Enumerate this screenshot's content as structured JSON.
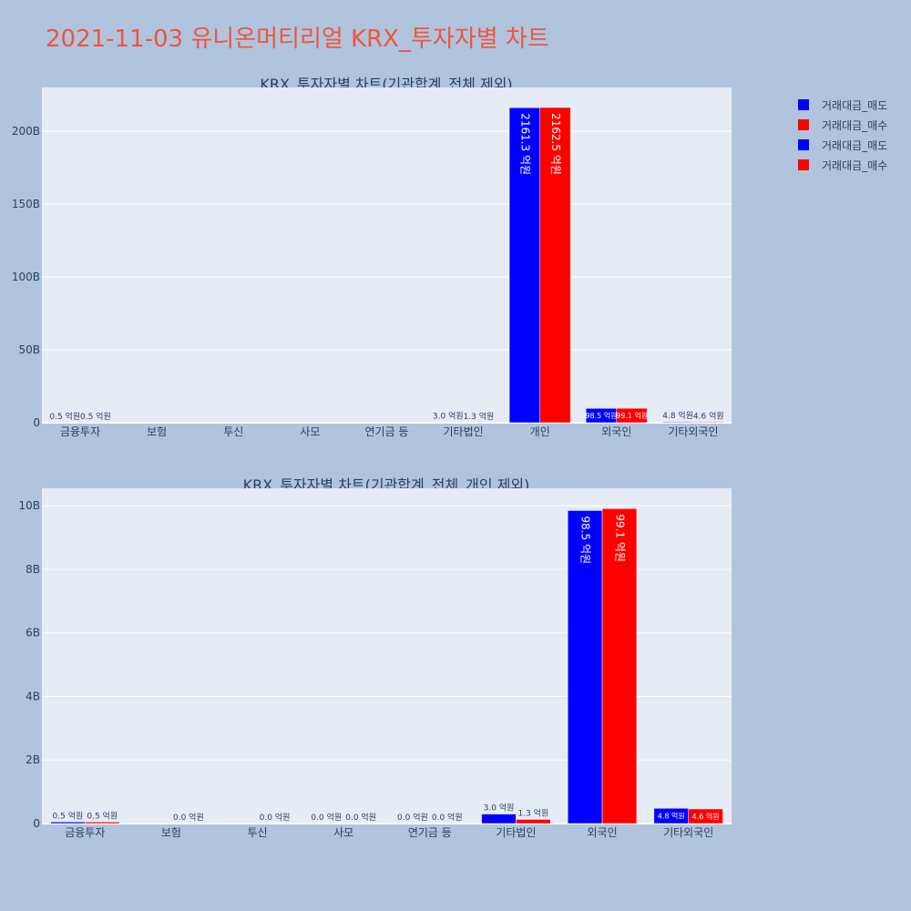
{
  "page_title": "2021-11-03 유니온머티리얼 KRX_투자자별 차트",
  "legend": [
    {
      "label": "거래대금_매도",
      "color": "#0000ff"
    },
    {
      "label": "거래대금_매수",
      "color": "#ff0000"
    },
    {
      "label": "거래대금_매도",
      "color": "#0000ff"
    },
    {
      "label": "거래대금_매수",
      "color": "#ff0000"
    }
  ],
  "chart_data": [
    {
      "type": "bar",
      "title": "KRX_투자자별 차트(기관합계_전체 제외)",
      "categories": [
        "금융투자",
        "보험",
        "투신",
        "사모",
        "연기금 등",
        "기타법인",
        "개인",
        "외국인",
        "기타외국인"
      ],
      "y_ticks": [
        {
          "value": 0,
          "label": "0"
        },
        {
          "value": 50,
          "label": "50B"
        },
        {
          "value": 100,
          "label": "100B"
        },
        {
          "value": 150,
          "label": "150B"
        },
        {
          "value": 200,
          "label": "200B"
        }
      ],
      "ylim": [
        0,
        230
      ],
      "unit": "억원 ÷ 10 = B",
      "series": [
        {
          "name": "거래대금_매도",
          "color": "#0000ff",
          "values": [
            0.05,
            0,
            0,
            0,
            0,
            0.3,
            216.13,
            9.85,
            0.48
          ],
          "labels": [
            "0.5 억원",
            "",
            "",
            "",
            "",
            "3.0 억원",
            "2161.3 억원",
            "98.5 억원",
            "4.8 억원"
          ]
        },
        {
          "name": "거래대금_매수",
          "color": "#ff0000",
          "values": [
            0.05,
            0,
            0,
            0,
            0,
            0.13,
            216.25,
            9.91,
            0.46
          ],
          "labels": [
            "0.5 억원",
            "",
            "",
            "",
            "",
            "1.3 억원",
            "2162.5 억원",
            "99.1 억원",
            "4.6 억원"
          ]
        }
      ]
    },
    {
      "type": "bar",
      "title": "KRX_투자자별 차트(기관합계_전체_개인 제외)",
      "categories": [
        "금융투자",
        "보험",
        "투신",
        "사모",
        "연기금 등",
        "기타법인",
        "외국인",
        "기타외국인"
      ],
      "y_ticks": [
        {
          "value": 0,
          "label": "0"
        },
        {
          "value": 2,
          "label": "2B"
        },
        {
          "value": 4,
          "label": "4B"
        },
        {
          "value": 6,
          "label": "6B"
        },
        {
          "value": 8,
          "label": "8B"
        },
        {
          "value": 10,
          "label": "10B"
        }
      ],
      "ylim": [
        0,
        10.55
      ],
      "series": [
        {
          "name": "거래대금_매도",
          "color": "#0000ff",
          "values": [
            0.05,
            0,
            0,
            0,
            0,
            0.3,
            9.85,
            0.48
          ],
          "labels": [
            "0.5 억원",
            "",
            "",
            "0.0 억원",
            "0.0 억원",
            "3.0 억원",
            "98.5 억원",
            "4.8 억원"
          ]
        },
        {
          "name": "거래대금_매수",
          "color": "#ff0000",
          "values": [
            0.05,
            0,
            0,
            0,
            0,
            0.13,
            9.91,
            0.46
          ],
          "labels": [
            "0.5 억원",
            "0.0 억원",
            "0.0 억원",
            "0.0 억원",
            "0.0 억원",
            "1.3 억원",
            "99.1 억원",
            "4.6 억원"
          ]
        }
      ]
    }
  ]
}
